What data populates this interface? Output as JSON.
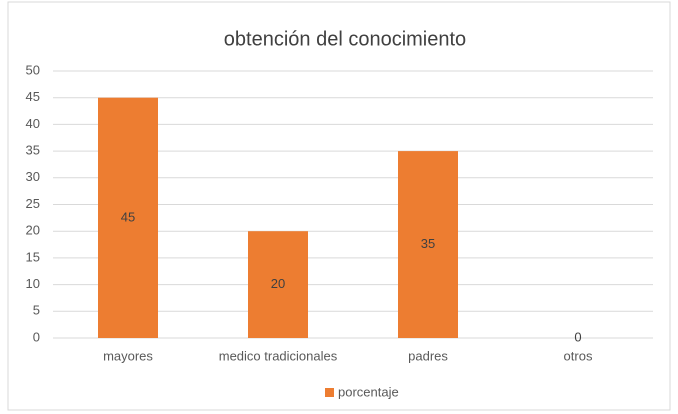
{
  "chart_data": {
    "type": "bar",
    "title": "obtención del conocimiento",
    "categories": [
      "mayores",
      "medico tradicionales",
      "padres",
      "otros"
    ],
    "series": [
      {
        "name": "porcentaje",
        "color": "#ed7d31",
        "values": [
          45,
          20,
          35,
          0
        ]
      }
    ],
    "ylim": [
      0,
      50
    ],
    "yticks": [
      0,
      5,
      10,
      15,
      20,
      25,
      30,
      35,
      40,
      45,
      50
    ],
    "grid": true,
    "legend": "bottom"
  }
}
